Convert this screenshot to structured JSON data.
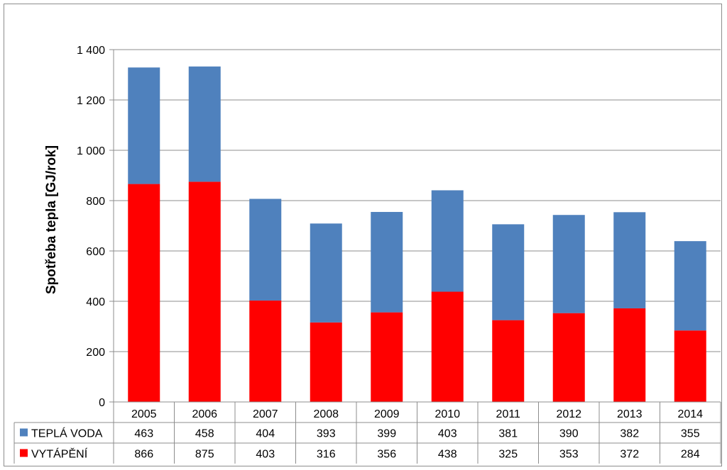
{
  "chart_data": {
    "type": "bar",
    "stacked": true,
    "categories": [
      "2005",
      "2006",
      "2007",
      "2008",
      "2009",
      "2010",
      "2011",
      "2012",
      "2013",
      "2014"
    ],
    "series": [
      {
        "name": "VYTÁPĚNÍ",
        "color": "#ff0000",
        "values": [
          866,
          875,
          403,
          316,
          356,
          438,
          325,
          353,
          372,
          284
        ]
      },
      {
        "name": "TEPLÁ VODA",
        "color": "#4f81bd",
        "values": [
          463,
          458,
          404,
          393,
          399,
          403,
          381,
          390,
          382,
          355
        ]
      }
    ],
    "table_order": [
      1,
      0
    ],
    "ylabel": "Spotřeba tepla  [GJ/rok]",
    "ylim": [
      0,
      1400
    ],
    "yticks": [
      0,
      200,
      400,
      600,
      800,
      1000,
      1200,
      1400
    ],
    "ytick_labels": [
      "0",
      "200",
      "400",
      "600",
      "800",
      "1 000",
      "1 200",
      "1 400"
    ],
    "grid": true,
    "legend": "data-table"
  }
}
